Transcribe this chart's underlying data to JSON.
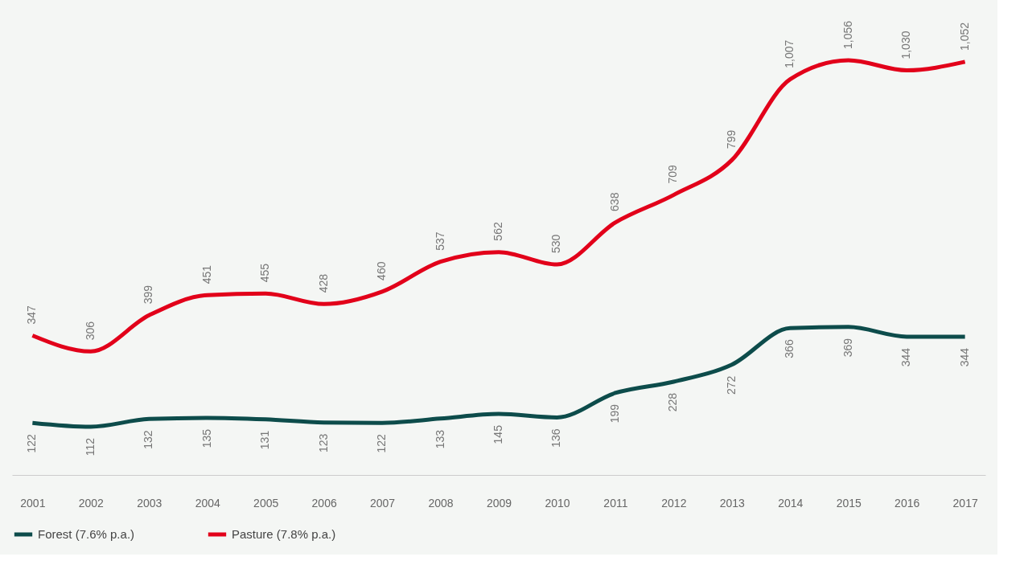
{
  "chart_data": {
    "type": "line",
    "categories": [
      "2001",
      "2002",
      "2003",
      "2004",
      "2005",
      "2006",
      "2007",
      "2008",
      "2009",
      "2010",
      "2011",
      "2012",
      "2013",
      "2014",
      "2015",
      "2016",
      "2017"
    ],
    "series": [
      {
        "name": "Forest (7.6% p.a.)",
        "color": "#0d4c4b",
        "values": [
          122,
          112,
          132,
          135,
          131,
          123,
          122,
          133,
          145,
          136,
          199,
          228,
          272,
          366,
          369,
          344,
          344
        ],
        "value_labels": [
          "122",
          "112",
          "132",
          "135",
          "131",
          "123",
          "122",
          "133",
          "145",
          "136",
          "199",
          "228",
          "272",
          "366",
          "369",
          "344",
          "344"
        ]
      },
      {
        "name": "Pasture (7.8% p.a.)",
        "color": "#e2001a",
        "values": [
          347,
          306,
          399,
          451,
          455,
          428,
          460,
          537,
          562,
          530,
          638,
          709,
          799,
          1007,
          1056,
          1030,
          1052
        ],
        "value_labels": [
          "347",
          "306",
          "399",
          "451",
          "455",
          "428",
          "460",
          "537",
          "562",
          "530",
          "638",
          "709",
          "799",
          "1,007",
          "1,056",
          "1,030",
          "1,052"
        ]
      }
    ],
    "tick_labels": "x",
    "grid": false,
    "legend": "bottom",
    "marker": "none",
    "line_style": "solid"
  }
}
